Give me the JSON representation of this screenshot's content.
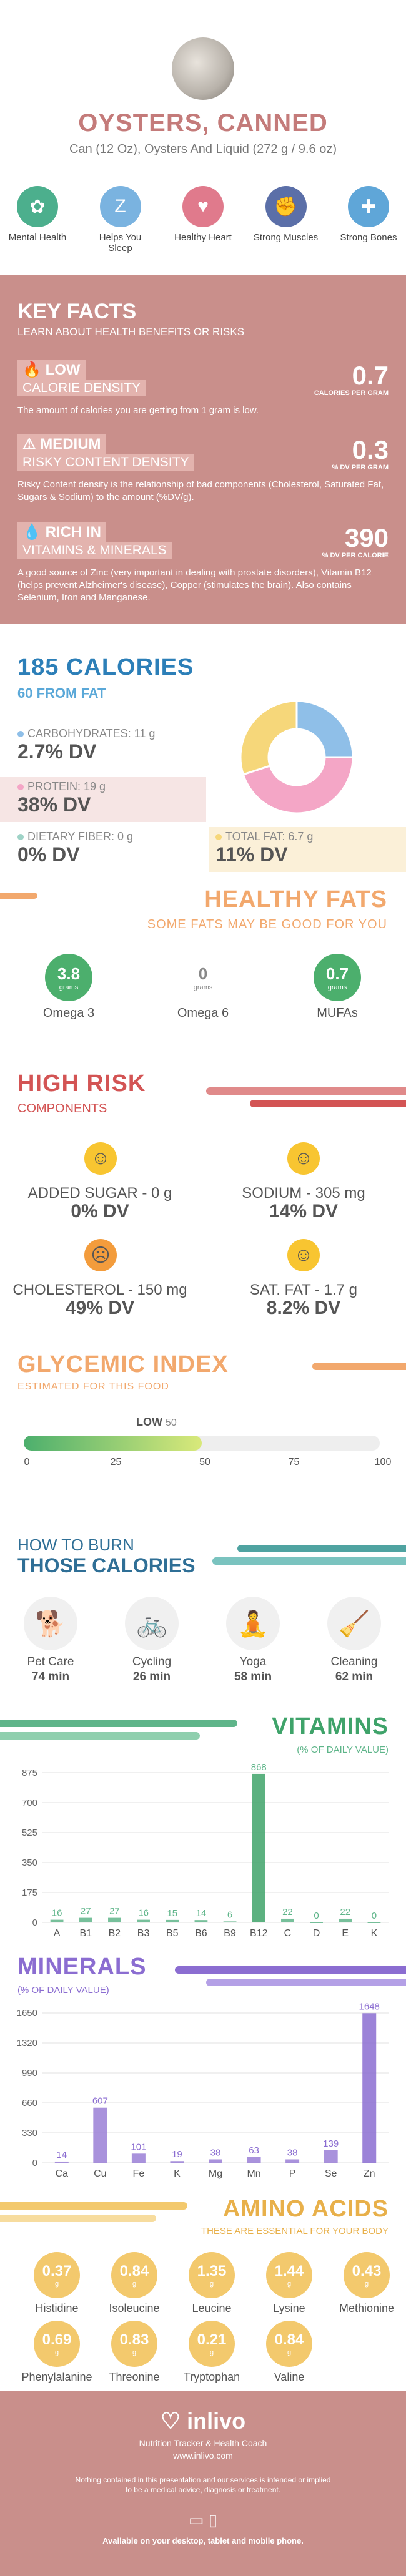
{
  "header": {
    "title": "OYSTERS, CANNED",
    "serving": "Can (12 Oz), Oysters And Liquid (272 g / 9.6 oz)"
  },
  "benefits": [
    {
      "label": "Mental Health",
      "icon": "brain-icon",
      "color": "#4caf8d",
      "glyph": "✿"
    },
    {
      "label": "Helps You Sleep",
      "icon": "sleep-icon",
      "color": "#7ab3e0",
      "glyph": "Z"
    },
    {
      "label": "Healthy Heart",
      "icon": "heart-icon",
      "color": "#e07a8c",
      "glyph": "♥"
    },
    {
      "label": "Strong Muscles",
      "icon": "muscle-icon",
      "color": "#5b6fa8",
      "glyph": "✊"
    },
    {
      "label": "Strong Bones",
      "icon": "bone-icon",
      "color": "#5fa6d8",
      "glyph": "✚"
    }
  ],
  "key_facts": {
    "title": "KEY FACTS",
    "subtitle": "LEARN ABOUT HEALTH BENEFITS OR RISKS",
    "items": [
      {
        "level": "LOW",
        "category": "CALORIE DENSITY",
        "value": "0.7",
        "unit": "CALORIES PER GRAM",
        "desc": "The amount of calories you are getting from 1 gram is low."
      },
      {
        "level": "MEDIUM",
        "category": "RISKY CONTENT DENSITY",
        "value": "0.3",
        "unit": "% DV PER GRAM",
        "desc": "Risky Content density is the relationship of bad components (Cholesterol, Saturated Fat, Sugars & Sodium) to the amount (%DV/g)."
      },
      {
        "level": "RICH IN",
        "category": "VITAMINS & MINERALS",
        "value": "390",
        "unit": "% DV PER CALORIE",
        "desc": "A good source of Zinc (very important in dealing with prostate disorders), Vitamin B12 (helps prevent Alzheimer's disease), Copper (stimulates the brain). Also contains Selenium, Iron and Manganese."
      }
    ]
  },
  "calories": {
    "title": "185 CALORIES",
    "subtitle": "60 FROM FAT",
    "macros": [
      {
        "label": "CARBOHYDRATES: 11 g",
        "dv": "2.7% DV",
        "color": "#8fbfe8"
      },
      {
        "label": "PROTEIN: 19 g",
        "dv": "38% DV",
        "color": "#f4a6c6"
      },
      {
        "label": "DIETARY FIBER: 0 g",
        "dv": "0% DV",
        "color": "#9fd3c7"
      },
      {
        "label": "TOTAL FAT: 6.7 g",
        "dv": "11% DV",
        "color": "#f6d77a"
      }
    ],
    "pie": [
      {
        "name": "carbohydrates",
        "value": 25,
        "color": "#8fbfe8"
      },
      {
        "name": "protein",
        "value": 45,
        "color": "#f4a6c6"
      },
      {
        "name": "fat",
        "value": 30,
        "color": "#f6d77a"
      }
    ]
  },
  "fats": {
    "title": "HEALTHY FATS",
    "subtitle": "SOME FATS MAY BE GOOD FOR YOU",
    "items": [
      {
        "value": "3.8",
        "unit": "grams",
        "name": "Omega 3",
        "color": "#4caf6d",
        "text": "#fff"
      },
      {
        "value": "0",
        "unit": "grams",
        "name": "Omega 6",
        "color": "#ffffff",
        "text": "#888"
      },
      {
        "value": "0.7",
        "unit": "grams",
        "name": "MUFAs",
        "color": "#4caf6d",
        "text": "#fff"
      }
    ]
  },
  "risk": {
    "title": "HIGH RISK",
    "subtitle": "COMPONENTS",
    "items": [
      {
        "label": "ADDED SUGAR - 0 g",
        "dv": "0% DV",
        "face": "☺",
        "color": "#f8c531"
      },
      {
        "label": "SODIUM - 305 mg",
        "dv": "14% DV",
        "face": "☺",
        "color": "#f8c531"
      },
      {
        "label": "CHOLESTEROL - 150 mg",
        "dv": "49% DV",
        "face": "☹",
        "color": "#f39c3c"
      },
      {
        "label": "SAT. FAT - 1.7 g",
        "dv": "8.2% DV",
        "face": "☺",
        "color": "#f8c531"
      }
    ]
  },
  "glycemic": {
    "title": "GLYCEMIC INDEX",
    "subtitle": "ESTIMATED FOR THIS FOOD",
    "level": "LOW",
    "value": 50,
    "ticks": [
      "0",
      "25",
      "50",
      "75",
      "100"
    ]
  },
  "burn": {
    "title1": "HOW TO BURN",
    "title2": "THOSE CALORIES",
    "items": [
      {
        "name": "Pet Care",
        "time": "74 min",
        "icon": "dog-walking-icon",
        "glyph": "🐕"
      },
      {
        "name": "Cycling",
        "time": "26 min",
        "icon": "cycling-icon",
        "glyph": "🚲"
      },
      {
        "name": "Yoga",
        "time": "58 min",
        "icon": "yoga-icon",
        "glyph": "🧘"
      },
      {
        "name": "Cleaning",
        "time": "62 min",
        "icon": "cleaning-icon",
        "glyph": "🧹"
      }
    ]
  },
  "vitamins_title": "VITAMINS",
  "vitamins_subtitle": "(% OF DAILY VALUE)",
  "minerals_title": "MINERALS",
  "minerals_subtitle": "(% OF DAILY VALUE)",
  "chart_data": [
    {
      "type": "bar",
      "title": "VITAMINS",
      "subtitle": "(% OF DAILY VALUE)",
      "categories": [
        "A",
        "B1",
        "B2",
        "B3",
        "B5",
        "B6",
        "B9",
        "B12",
        "C",
        "D",
        "E",
        "K"
      ],
      "values": [
        16,
        27,
        27,
        16,
        15,
        14,
        6,
        868,
        22,
        0,
        22,
        0
      ],
      "yticks": [
        0,
        175,
        350,
        525,
        700,
        875
      ],
      "ylim": [
        0,
        875
      ],
      "color": "#5fb58a",
      "highlight_color": "#3fa36a",
      "label_color": "#5fb58a"
    },
    {
      "type": "bar",
      "title": "MINERALS",
      "subtitle": "(% OF DAILY VALUE)",
      "categories": [
        "Ca",
        "Cu",
        "Fe",
        "K",
        "Mg",
        "Mn",
        "P",
        "Se",
        "Zn"
      ],
      "values": [
        14,
        607,
        101,
        19,
        38,
        63,
        38,
        139,
        1648
      ],
      "yticks": [
        0,
        330,
        660,
        990,
        1320,
        1650
      ],
      "ylim": [
        0,
        1650
      ],
      "color": "#9a7fd6",
      "highlight_color": "#8b6dd1",
      "label_color": "#8b6dd1"
    }
  ],
  "amino": {
    "title": "AMINO ACIDS",
    "subtitle": "THESE ARE ESSENTIAL FOR YOUR BODY",
    "unit": "g",
    "items": [
      {
        "value": "0.37",
        "name": "Histidine"
      },
      {
        "value": "0.84",
        "name": "Isoleucine"
      },
      {
        "value": "1.35",
        "name": "Leucine"
      },
      {
        "value": "1.44",
        "name": "Lysine"
      },
      {
        "value": "0.43",
        "name": "Methionine"
      },
      {
        "value": "0.69",
        "name": "Phenylalanine"
      },
      {
        "value": "0.83",
        "name": "Threonine"
      },
      {
        "value": "0.21",
        "name": "Tryptophan"
      },
      {
        "value": "0.84",
        "name": "Valine"
      }
    ]
  },
  "footer": {
    "brand": "inlivo",
    "tagline": "Nutrition Tracker & Health Coach",
    "url": "www.inlivo.com",
    "disclaimer1": "Nothing contained in this presentation and our services is intended or implied",
    "disclaimer2": "to be a medical advice, diagnosis or treatment.",
    "available": "Available on your desktop, tablet and mobile phone."
  }
}
